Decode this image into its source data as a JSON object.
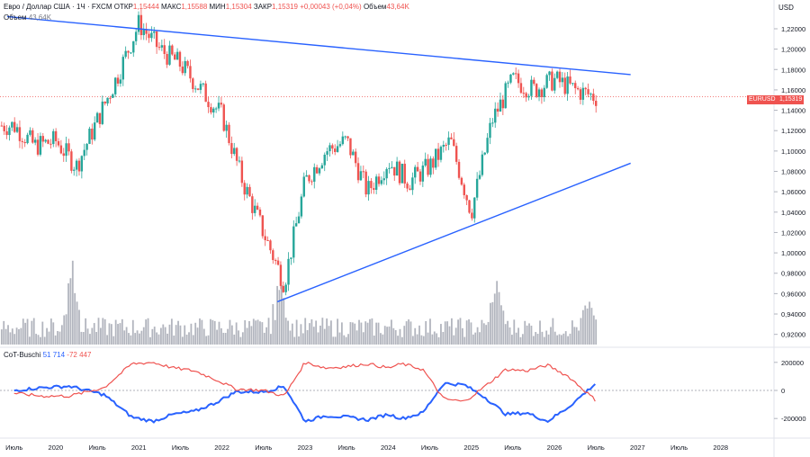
{
  "header": {
    "title": "Евро / Доллар США · 1Ч · FXCM",
    "open_label": "ОТКР",
    "open": "1,15444",
    "high_label": "МАКС",
    "high": "1,15588",
    "low_label": "МИН",
    "low": "1,15304",
    "close_label": "ЗАКР",
    "close": "1,15319",
    "change": "+0,00043 (+0,04%)",
    "volume_label": "Объем",
    "volume": "43,64K"
  },
  "volume_legend": {
    "label": "Объем",
    "value": "43,64K"
  },
  "price_axis": {
    "currency": "USD",
    "ticks": [
      "1,22000",
      "1,20000",
      "1,18000",
      "1,16000",
      "1,14000",
      "1,12000",
      "1,10000",
      "1,08000",
      "1,06000",
      "1,04000",
      "1,02000",
      "1,00000",
      "0,98000",
      "0,96000",
      "0,94000",
      "0,92000"
    ],
    "symbol_tag": "EURUSD",
    "price_tag": "1,15319"
  },
  "indicator": {
    "name": "CoT-Buschi",
    "value1": "51 714",
    "value2": "-72 447",
    "ticks": [
      "200000",
      "0",
      "-200000"
    ]
  },
  "time_axis": [
    "Июль",
    "2020",
    "Июль",
    "2021",
    "Июль",
    "2022",
    "Июль",
    "2023",
    "Июль",
    "2024",
    "Июль",
    "2025",
    "Июль",
    "2026",
    "Июль",
    "2027",
    "Июль",
    "2028"
  ],
  "colors": {
    "up": "#26a69a",
    "down": "#ef5350",
    "trendline": "#2962ff",
    "net_noncomm": "#2962ff",
    "net_comm": "#ef5350",
    "volume": "#b2b5be"
  },
  "chart_data": [
    {
      "type": "candlestick",
      "title": "Евро / Доллар США · 1Ч · FXCM",
      "ylabel": "USD",
      "ylim": [
        0.91,
        1.235
      ],
      "x": [
        "2019-07",
        "2019-10",
        "2020-01",
        "2020-04",
        "2020-07",
        "2020-10",
        "2021-01",
        "2021-04",
        "2021-07",
        "2021-10",
        "2022-01",
        "2022-04",
        "2022-07",
        "2022-10",
        "2023-01",
        "2023-04",
        "2023-07",
        "2023-10",
        "2024-01",
        "2024-04",
        "2024-07",
        "2024-10",
        "2025-01",
        "2025-04",
        "2025-07",
        "2025-10",
        "2026-01",
        "2026-04",
        "2026-07"
      ],
      "close": [
        1.125,
        1.105,
        1.11,
        1.085,
        1.13,
        1.175,
        1.225,
        1.2,
        1.185,
        1.16,
        1.135,
        1.07,
        1.02,
        0.97,
        1.07,
        1.1,
        1.11,
        1.06,
        1.09,
        1.07,
        1.085,
        1.11,
        1.04,
        1.13,
        1.17,
        1.16,
        1.17,
        1.16,
        1.153
      ],
      "trendlines": [
        {
          "from": [
            "2019-06",
            1.232
          ],
          "to": [
            "2026-12",
            1.175
          ]
        },
        {
          "from": [
            "2022-09",
            0.952
          ],
          "to": [
            "2026-12",
            1.088
          ]
        }
      ],
      "last_price": 1.15319
    },
    {
      "type": "bar",
      "title": "Объем",
      "note": "volume histogram, spikes around 2020-03, 2022-09 and 2025-04"
    },
    {
      "type": "line",
      "title": "CoT-Buschi",
      "ylim": [
        -250000,
        250000
      ],
      "series": [
        {
          "name": "51 714",
          "color": "#2962ff",
          "x": [
            "2019-07",
            "2019-11",
            "2020-03",
            "2020-08",
            "2020-12",
            "2021-03",
            "2021-06",
            "2021-09",
            "2021-12",
            "2022-03",
            "2022-07",
            "2022-10",
            "2023-01",
            "2023-04",
            "2023-07",
            "2023-10",
            "2024-01",
            "2024-03",
            "2024-06",
            "2024-09",
            "2024-12",
            "2025-03",
            "2025-06",
            "2025-09",
            "2025-12",
            "2026-03",
            "2026-07"
          ],
          "values": [
            0,
            20000,
            30000,
            -30000,
            -190000,
            -220000,
            -170000,
            -150000,
            -90000,
            -10000,
            -10000,
            30000,
            -220000,
            -180000,
            -190000,
            -210000,
            -170000,
            -200000,
            -160000,
            50000,
            40000,
            -50000,
            -170000,
            -160000,
            -220000,
            -120000,
            51714
          ]
        },
        {
          "name": "-72 447",
          "color": "#ef5350",
          "x": [
            "2019-07",
            "2019-11",
            "2020-03",
            "2020-08",
            "2020-12",
            "2021-03",
            "2021-06",
            "2021-09",
            "2021-12",
            "2022-03",
            "2022-07",
            "2022-10",
            "2023-01",
            "2023-04",
            "2023-07",
            "2023-10",
            "2024-01",
            "2024-03",
            "2024-06",
            "2024-09",
            "2024-12",
            "2025-03",
            "2025-06",
            "2025-09",
            "2025-12",
            "2026-03",
            "2026-07"
          ],
          "values": [
            -20000,
            -40000,
            -40000,
            20000,
            190000,
            200000,
            160000,
            140000,
            80000,
            10000,
            0,
            -40000,
            200000,
            160000,
            170000,
            190000,
            160000,
            190000,
            150000,
            -60000,
            -80000,
            30000,
            150000,
            140000,
            180000,
            100000,
            -72447
          ]
        }
      ]
    }
  ]
}
